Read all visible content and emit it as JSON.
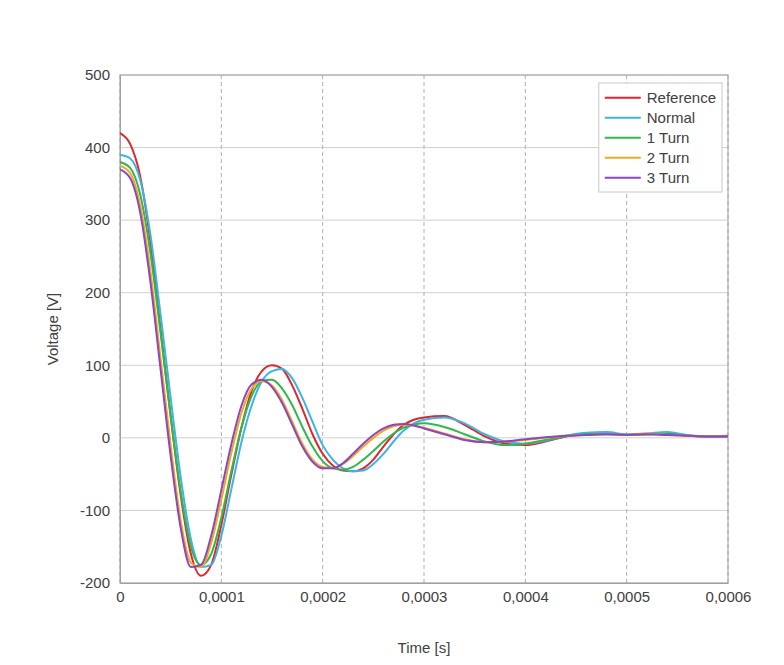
{
  "chart_data": {
    "type": "line",
    "x_label": "Time [s]",
    "y_label": "Voltage [V]",
    "x": [
      0,
      1e-05,
      2e-05,
      3e-05,
      4e-05,
      5e-05,
      6e-05,
      7e-05,
      8e-05,
      9e-05,
      0.0001,
      0.00011,
      0.00012,
      0.00013,
      0.00014,
      0.00015,
      0.00016,
      0.00017,
      0.00018,
      0.00019,
      0.0002,
      0.00021,
      0.00022,
      0.00023,
      0.00024,
      0.00025,
      0.00026,
      0.00027,
      0.00028,
      0.00029,
      0.0003,
      0.00032,
      0.00034,
      0.00036,
      0.00038,
      0.0004,
      0.00042,
      0.00044,
      0.00046,
      0.00048,
      0.0005,
      0.00052,
      0.00054,
      0.00056,
      0.00058,
      0.0006
    ],
    "series": [
      {
        "name": "Reference",
        "color": "#e0262b",
        "values": [
          420,
          405,
          360,
          270,
          150,
          30,
          -80,
          -160,
          -190,
          -175,
          -120,
          -50,
          15,
          65,
          92,
          100,
          95,
          72,
          40,
          5,
          -22,
          -38,
          -45,
          -46,
          -42,
          -30,
          -12,
          5,
          18,
          25,
          28,
          30,
          18,
          2,
          -8,
          -10,
          -5,
          2,
          6,
          6,
          4,
          5,
          6,
          3,
          2,
          3
        ]
      },
      {
        "name": "Normal",
        "color": "#3cb4e6",
        "values": [
          390,
          385,
          355,
          280,
          170,
          55,
          -55,
          -140,
          -178,
          -175,
          -135,
          -70,
          -5,
          45,
          78,
          92,
          95,
          82,
          55,
          22,
          -10,
          -30,
          -42,
          -46,
          -45,
          -36,
          -22,
          -5,
          10,
          20,
          25,
          28,
          20,
          5,
          -5,
          -8,
          -4,
          3,
          7,
          8,
          5,
          6,
          8,
          4,
          2,
          2
        ]
      },
      {
        "name": "1 Turn",
        "color": "#2fb84c",
        "values": [
          380,
          372,
          335,
          255,
          145,
          30,
          -75,
          -150,
          -175,
          -160,
          -110,
          -45,
          15,
          58,
          78,
          80,
          68,
          45,
          15,
          -12,
          -32,
          -42,
          -44,
          -40,
          -30,
          -18,
          -5,
          6,
          14,
          18,
          20,
          15,
          5,
          -5,
          -10,
          -8,
          -3,
          2,
          5,
          5,
          4,
          5,
          5,
          3,
          2,
          2
        ]
      },
      {
        "name": "2 Turn",
        "color": "#f5a81c",
        "values": [
          375,
          365,
          320,
          230,
          110,
          -10,
          -115,
          -172,
          -178,
          -145,
          -85,
          -20,
          35,
          68,
          78,
          72,
          52,
          22,
          -8,
          -30,
          -40,
          -42,
          -36,
          -25,
          -12,
          0,
          10,
          16,
          18,
          17,
          14,
          6,
          -2,
          -6,
          -5,
          -3,
          0,
          3,
          4,
          5,
          4,
          6,
          4,
          3,
          2,
          2
        ]
      },
      {
        "name": "3 Turn",
        "color": "#8b45c9",
        "values": [
          370,
          358,
          310,
          215,
          95,
          -25,
          -125,
          -178,
          -175,
          -135,
          -72,
          -8,
          45,
          74,
          80,
          70,
          48,
          18,
          -12,
          -33,
          -42,
          -42,
          -35,
          -22,
          -8,
          4,
          13,
          18,
          19,
          17,
          13,
          5,
          -3,
          -6,
          -5,
          -2,
          1,
          3,
          4,
          5,
          4,
          5,
          4,
          3,
          2,
          2
        ]
      }
    ],
    "xlim": [
      0,
      0.0006
    ],
    "ylim": [
      -200,
      500
    ],
    "xticks": [
      0,
      {
        "value": 0.0001,
        "label": "0,0001"
      },
      {
        "value": 0.0002,
        "label": "0,0002"
      },
      {
        "value": 0.0003,
        "label": "0,0003"
      },
      {
        "value": 0.0004,
        "label": "0,0004"
      },
      {
        "value": 0.0005,
        "label": "0,0005"
      },
      {
        "value": 0.0006,
        "label": "0,0006"
      }
    ],
    "yticks": [
      -200,
      -100,
      0,
      100,
      200,
      300,
      400,
      500
    ],
    "grid": true,
    "legend": "top-right"
  }
}
